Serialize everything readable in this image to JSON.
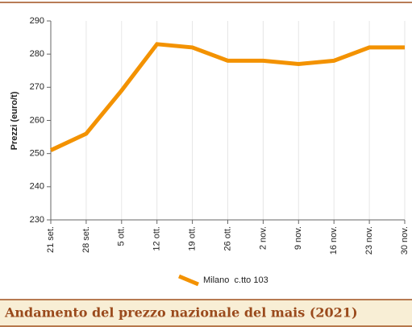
{
  "chart_data": {
    "type": "line",
    "title": "Andamento del prezzo nazionale del mais (2021)",
    "y_label": "Prezzi (euro/t)",
    "categories": [
      "21 set.",
      "28 set.",
      "5 ott.",
      "12 ott.",
      "19 ott.",
      "26 ott.",
      "2 nov.",
      "9 nov.",
      "16 nov.",
      "23 nov.",
      "30 nov."
    ],
    "series": [
      {
        "name": "Milano  c.tto 103",
        "color": "#f39200",
        "values": [
          251,
          256,
          269,
          283,
          282,
          278,
          278,
          277,
          278,
          282,
          282
        ]
      }
    ],
    "ylim": [
      230,
      290
    ],
    "yticks": [
      230,
      240,
      250,
      260,
      270,
      280,
      290
    ],
    "grid": true,
    "legend": "bottom"
  }
}
